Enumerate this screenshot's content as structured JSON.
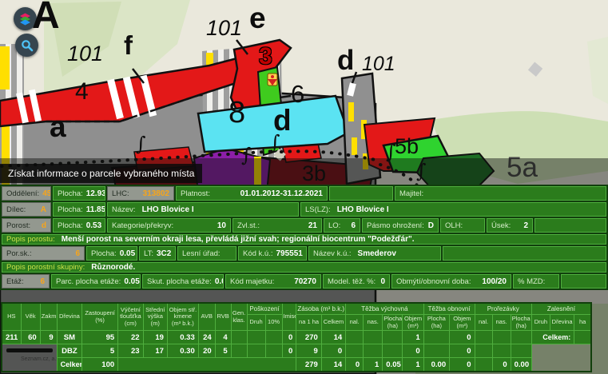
{
  "map": {
    "tooltip": "Získat informace o parcele vybraného místa",
    "attribution": "Seznam.cz, a.s.",
    "controls": [
      {
        "name": "layers-button"
      },
      {
        "name": "search-button"
      }
    ],
    "labels": [
      {
        "id": "bigA",
        "text": "A"
      },
      {
        "id": "f101",
        "text": "101"
      },
      {
        "id": "fB",
        "text": "f"
      },
      {
        "id": "e101",
        "text": "101"
      },
      {
        "id": "eB",
        "text": "e"
      },
      {
        "id": "n3",
        "text": "3"
      },
      {
        "id": "n6",
        "text": "6"
      },
      {
        "id": "n8",
        "text": "8"
      },
      {
        "id": "dMid",
        "text": "d"
      },
      {
        "id": "dR",
        "text": "d"
      },
      {
        "id": "dR101",
        "text": "101"
      },
      {
        "id": "n4",
        "text": "4"
      },
      {
        "id": "aSm",
        "text": "a"
      },
      {
        "id": "b3",
        "text": "3b"
      },
      {
        "id": "b5",
        "text": "5b"
      },
      {
        "id": "a5",
        "text": "5a"
      },
      {
        "id": "i1",
        "text": "∫"
      },
      {
        "id": "i2",
        "text": "∫"
      },
      {
        "id": "i3",
        "text": "∫"
      },
      {
        "id": "i4",
        "text": "∫"
      },
      {
        "id": "i5",
        "text": "∫"
      }
    ]
  },
  "panel": {
    "rows": [
      [
        [
          "Oddělení:",
          "45"
        ],
        [
          "Plocha:",
          "12.93"
        ],
        [
          "LHC:",
          "313802"
        ],
        [
          "Platnost:",
          "01.01.2012-31.12.2021"
        ],
        [
          "",
          ""
        ],
        [
          "Majitel:",
          ""
        ]
      ],
      [
        [
          "Dílec:",
          "A"
        ],
        [
          "Plocha:",
          "11.85"
        ],
        [
          "Název:",
          "LHO Blovice I"
        ],
        [
          "LS(LZ):",
          "LHO Blovice I"
        ]
      ],
      [
        [
          "Porost:",
          "d"
        ],
        [
          "Plocha:",
          "0.53"
        ],
        [
          "Kategorie/překryv:",
          "10"
        ],
        [
          "Zvl.st.:",
          "21"
        ],
        [
          "LO:",
          "6"
        ],
        [
          "Pásmo ohrožení:",
          "D"
        ],
        [
          "OLH:",
          ""
        ],
        [
          "Úsek:",
          "2"
        ],
        [
          "",
          ""
        ]
      ],
      [
        [
          "Popis porostu:",
          "Menší porost na severním okraji lesa, převládá jižní svah; regionální biocentrum \"Podežďár\"."
        ]
      ],
      [
        [
          "Por.sk.:",
          "6"
        ],
        [
          "Plocha:",
          "0.05"
        ],
        [
          "LT:",
          "3C2"
        ],
        [
          "Lesní úřad:",
          ""
        ],
        [
          "Kód k.ú.:",
          "795551"
        ],
        [
          "Název k.ú.:",
          "Smederov"
        ],
        [
          "",
          ""
        ]
      ],
      [
        [
          "Popis porostní skupiny:",
          "Různorodé."
        ]
      ],
      [
        [
          "Etáž:",
          "6"
        ],
        [
          "Parc. plocha etáže:",
          "0.05"
        ],
        [
          "Skut. plocha etáže:",
          "0.05"
        ],
        [
          "Kód majetku:",
          "70270"
        ],
        [
          "Model. těž. %:",
          "0"
        ],
        [
          "Obmýtí/obnovní doba:",
          "100/20"
        ],
        [
          "% MZD:",
          ""
        ],
        [
          "",
          ""
        ]
      ]
    ]
  },
  "table": {
    "columns": [
      {
        "label": "HS"
      },
      {
        "label": "Věk"
      },
      {
        "label": "Zakm."
      },
      {
        "label": "Dřevina"
      },
      {
        "label": "Zastoupení (%)"
      },
      {
        "label": "Výčetní tloušťka (cm)"
      },
      {
        "label": "Střední výška (m)"
      },
      {
        "label": "Objem stř. kmene (m³ b.k.)"
      },
      {
        "label": "AVB"
      },
      {
        "label": "RVB"
      },
      {
        "label": "Gen. klas."
      },
      {
        "label": "Poškození",
        "children": [
          "Druh",
          "10%"
        ]
      },
      {
        "label": "Imise"
      },
      {
        "label": "Zásoba (m³ b.k.)",
        "children": [
          "na 1 ha",
          "Celkem"
        ]
      },
      {
        "label": "Těžba výchovná",
        "children": [
          "nal.",
          "nas.",
          "Plocha (ha)",
          "Objem (m³)"
        ]
      },
      {
        "label": "Těžba obnovní",
        "children": [
          "Plocha (ha)",
          "Objem (m³)"
        ]
      },
      {
        "label": "Prořezávky",
        "children": [
          "nal.",
          "nas.",
          "Plocha (ha)"
        ]
      },
      {
        "label": "Zalesnění",
        "children": [
          "Druh",
          "Dřevina",
          "ha"
        ]
      }
    ],
    "rows": [
      [
        "211",
        "60",
        "9",
        "SM",
        "95",
        "22",
        "19",
        "0.33",
        "24",
        "4",
        "",
        "",
        "",
        "0",
        "270",
        "14",
        "",
        "",
        "",
        "1",
        "",
        "0",
        "",
        "",
        "",
        {
          "t": "Celkem:",
          "cs": 2,
          "cls": "zlab"
        },
        ""
      ],
      [
        null,
        null,
        null,
        "DBZ",
        "5",
        "23",
        "17",
        "0.30",
        "20",
        "5",
        "",
        "",
        "",
        "0",
        "9",
        "0",
        "",
        "",
        "",
        "0",
        "",
        "0",
        "",
        "",
        "",
        null,
        null,
        null
      ],
      [
        null,
        null,
        null,
        {
          "t": "Celkem:",
          "cls": "lbl"
        },
        "100",
        {
          "t": "",
          "cs": 9
        },
        "279",
        "14",
        "0",
        "1",
        "0.05",
        "1",
        "0.00",
        "0",
        "",
        "0",
        "0.00",
        null,
        null,
        null
      ]
    ]
  }
}
